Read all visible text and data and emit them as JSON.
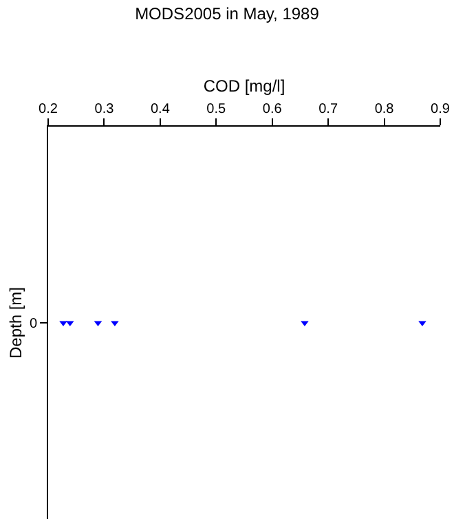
{
  "chart_data": {
    "type": "scatter",
    "orientation": "horizontal",
    "title": "MODS2005 in May, 1989",
    "xlabel": "COD [mg/l]",
    "ylabel": "Depth [m]",
    "categories": [
      "0"
    ],
    "series": [
      {
        "color": "#0000ff",
        "values": [
          0.227
        ]
      },
      {
        "color": "#0000ff",
        "values": [
          0.239
        ]
      },
      {
        "color": "#0000ff",
        "values": [
          0.289
        ]
      },
      {
        "color": "#0000ff",
        "values": [
          0.319
        ]
      },
      {
        "color": "#0000ff",
        "values": [
          0.658
        ]
      },
      {
        "color": "#0000ff",
        "values": [
          0.868
        ]
      }
    ],
    "xlim": [
      0.2,
      0.9
    ],
    "xticks": [
      0.2,
      0.3,
      0.4,
      0.5,
      0.6,
      0.7,
      0.8,
      0.9
    ],
    "marker": "triangle"
  }
}
